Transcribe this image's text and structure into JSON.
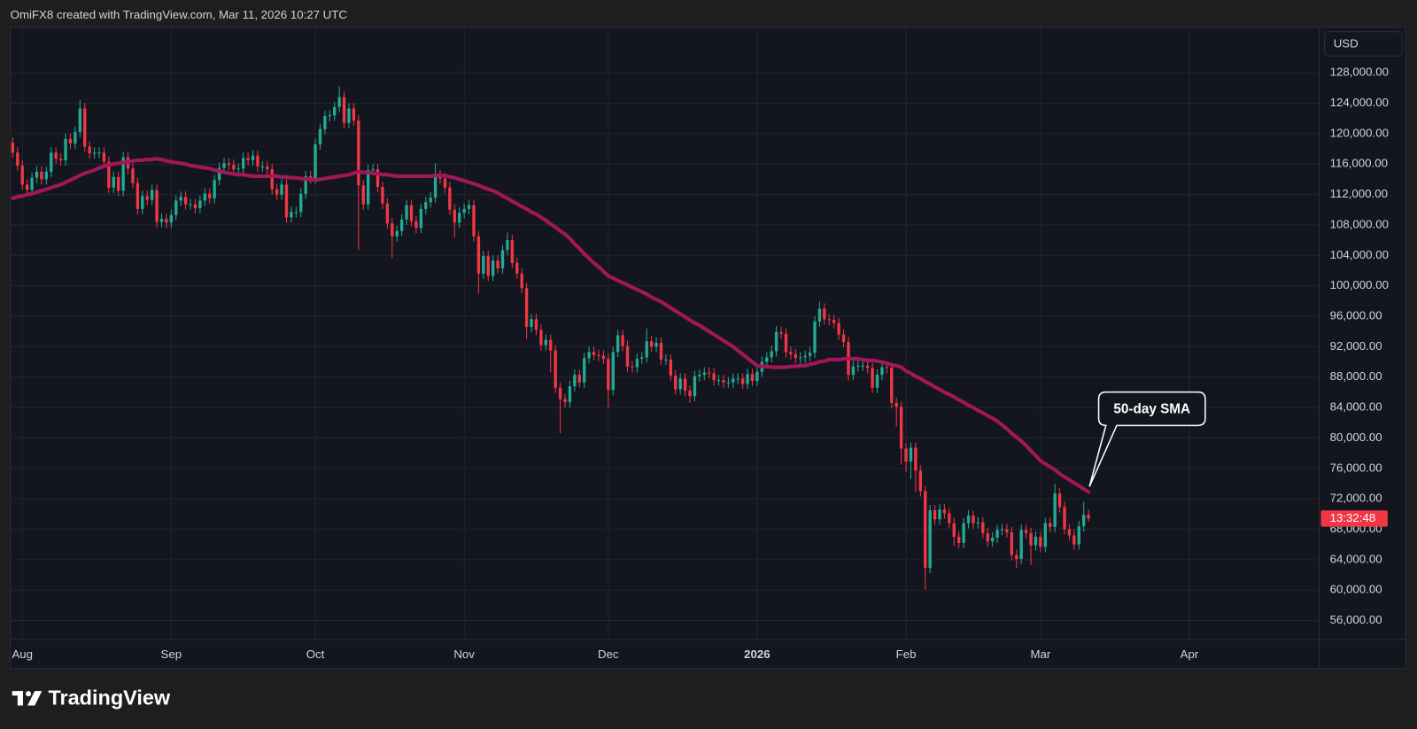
{
  "header": {
    "attribution": "OmiFX8 created with TradingView.com, Mar 11, 2026 10:27 UTC"
  },
  "logo": {
    "text": "TradingView"
  },
  "chart_data": {
    "type": "candlestick",
    "currency": "USD",
    "countdown": "13:32:48",
    "up_color": "#22ab94",
    "down_color": "#f23645",
    "grid": true,
    "open": [
      118800,
      117500,
      115800,
      113300,
      112600,
      114200,
      115000,
      114000,
      115000,
      117500,
      116700,
      116500,
      119300,
      118700,
      120200,
      123300,
      118300,
      117400,
      117500,
      117500,
      116300,
      112900,
      114300,
      112500,
      116900,
      115400,
      113500,
      110100,
      111800,
      111300,
      112600,
      108400,
      108800,
      108300,
      109300,
      111200,
      111700,
      110700,
      110700,
      110200,
      111200,
      112100,
      111500,
      113900,
      115500,
      116100,
      115900,
      115300,
      115400,
      116800,
      116500,
      117100,
      115700,
      115700,
      115300,
      112700,
      112000,
      113300,
      109000,
      109700,
      109700,
      112100,
      114400,
      114100,
      118600,
      120600,
      122300,
      122400,
      123500,
      124800,
      121400,
      123300,
      121700,
      113200,
      110700,
      115200,
      115300,
      113000,
      110800,
      108200,
      106500,
      107200,
      108700,
      110600,
      108500,
      107600,
      110100,
      111000,
      111600,
      114500,
      114100,
      112900,
      110000,
      108300,
      109600,
      110100,
      110600,
      106500,
      101600,
      103900,
      101300,
      103300,
      102300,
      104700,
      106000,
      103000,
      101600,
      99700,
      94600,
      95600,
      94200,
      92200,
      92900,
      91500,
      86600,
      85100,
      84700,
      86800,
      88300,
      87300,
      90500,
      91300,
      90900,
      90800,
      90400,
      86300,
      91300,
      93500,
      92100,
      89400,
      89300,
      90400,
      90600,
      92700,
      92000,
      92500,
      90300,
      90300,
      88200,
      86400,
      87800,
      86200,
      85500,
      88100,
      88300,
      88600,
      88500,
      87600,
      87600,
      87300,
      87300,
      87800,
      87800,
      87100,
      88400,
      87500,
      88700,
      90000,
      90600,
      91400,
      93900,
      93700,
      91300,
      91000,
      90500,
      90600,
      90800,
      91200,
      95300,
      97000,
      95600,
      95500,
      95100,
      93600,
      92600,
      88300,
      89400,
      89500,
      89500,
      89200,
      86600,
      88300,
      89300,
      89200,
      84600,
      84100,
      78600,
      76900,
      78700,
      75700,
      73000,
      62900,
      70500,
      69300,
      70600,
      70100,
      68800,
      67000,
      66200,
      68800,
      69800,
      68800,
      68900,
      67500,
      66400,
      66900,
      67900,
      68000,
      67600,
      64600,
      64100,
      67900,
      67500,
      65900,
      67000,
      65700,
      68800,
      68300,
      72700,
      70900,
      68000,
      67200,
      66000,
      68400,
      69900
    ],
    "high": [
      119500,
      118200,
      116500,
      114000,
      114900,
      115700,
      115700,
      115700,
      118200,
      118200,
      117400,
      120000,
      120000,
      120900,
      124400,
      124000,
      119000,
      118200,
      118200,
      118200,
      117000,
      115000,
      115000,
      117600,
      117600,
      116100,
      114200,
      112500,
      112500,
      113300,
      113300,
      109500,
      109500,
      110000,
      111900,
      112400,
      112400,
      111400,
      111400,
      111900,
      112800,
      112800,
      114600,
      116200,
      116800,
      116800,
      116600,
      116100,
      117500,
      117500,
      117800,
      117800,
      116400,
      116400,
      116000,
      113400,
      114000,
      114000,
      110400,
      110400,
      112800,
      115100,
      115100,
      119300,
      121300,
      123000,
      123100,
      124200,
      126200,
      125500,
      124000,
      124000,
      122400,
      113900,
      115900,
      116000,
      116000,
      113700,
      111500,
      108900,
      107900,
      109400,
      111300,
      111300,
      109200,
      110800,
      111700,
      112300,
      116100,
      115200,
      114800,
      113600,
      110700,
      110300,
      110800,
      111300,
      111300,
      107200,
      104600,
      104600,
      104000,
      104000,
      105400,
      107000,
      106700,
      103700,
      102300,
      100400,
      96300,
      96300,
      94900,
      93600,
      93600,
      92200,
      87300,
      85800,
      87500,
      89000,
      89000,
      91200,
      92000,
      92000,
      91600,
      91500,
      91100,
      92000,
      94200,
      94200,
      92800,
      90100,
      91100,
      91300,
      94400,
      93400,
      93200,
      93200,
      91000,
      91000,
      88900,
      88500,
      88500,
      86900,
      88800,
      89000,
      89300,
      89300,
      89200,
      88300,
      88300,
      88000,
      88500,
      88500,
      88500,
      89100,
      89100,
      89400,
      90700,
      91300,
      92100,
      94700,
      94600,
      94400,
      92000,
      91700,
      91300,
      91500,
      92000,
      96000,
      97900,
      97700,
      96300,
      96200,
      95800,
      94300,
      93300,
      90100,
      90200,
      90200,
      90200,
      89900,
      89000,
      90000,
      90000,
      89900,
      85300,
      84800,
      79300,
      79400,
      79400,
      76400,
      73700,
      71200,
      71200,
      71300,
      71300,
      70800,
      69500,
      67700,
      69500,
      70500,
      70500,
      69600,
      69600,
      68200,
      67600,
      68600,
      68700,
      68700,
      68300,
      65300,
      68600,
      68600,
      68200,
      67700,
      67700,
      69500,
      69500,
      74000,
      73400,
      71600,
      68700,
      67900,
      69100,
      71600,
      70600
    ],
    "low": [
      116800,
      115100,
      112600,
      111900,
      111900,
      113500,
      113300,
      113300,
      114300,
      116000,
      115800,
      115800,
      118000,
      118000,
      119500,
      117600,
      116700,
      116700,
      116800,
      115600,
      112200,
      112200,
      111800,
      111800,
      114700,
      112800,
      109400,
      109400,
      110600,
      110600,
      107700,
      107700,
      107600,
      107600,
      108600,
      110500,
      110000,
      110000,
      109500,
      109500,
      110500,
      110800,
      110800,
      113200,
      114800,
      115200,
      114600,
      114600,
      114700,
      115800,
      115800,
      115000,
      115000,
      114600,
      112000,
      111300,
      111300,
      108300,
      108300,
      109000,
      109000,
      111400,
      113400,
      113400,
      117900,
      119900,
      121600,
      121700,
      122800,
      120700,
      120700,
      121000,
      104700,
      110000,
      110000,
      114500,
      112300,
      110100,
      107500,
      103600,
      105800,
      106500,
      108000,
      107800,
      106900,
      106900,
      109400,
      110300,
      110900,
      113400,
      112200,
      109300,
      106300,
      107600,
      108900,
      109400,
      105800,
      99000,
      100900,
      100600,
      100600,
      101600,
      101600,
      104000,
      102300,
      100900,
      99000,
      93000,
      93900,
      93500,
      91500,
      91500,
      88600,
      85900,
      80600,
      84000,
      84000,
      86100,
      86600,
      86600,
      89800,
      90200,
      90100,
      89700,
      84000,
      85600,
      90600,
      91400,
      88700,
      88600,
      88600,
      89700,
      89900,
      91300,
      91300,
      89600,
      89600,
      87500,
      85700,
      85700,
      85500,
      84600,
      84800,
      87400,
      87600,
      87800,
      86900,
      86900,
      86600,
      86600,
      86600,
      87100,
      86400,
      86400,
      86800,
      86800,
      88000,
      89300,
      89900,
      90700,
      93000,
      90600,
      90300,
      89800,
      89800,
      89900,
      90100,
      90500,
      94600,
      94900,
      94800,
      94400,
      92900,
      91900,
      87500,
      87600,
      88700,
      88800,
      88500,
      85900,
      85900,
      87600,
      88500,
      83900,
      81500,
      76500,
      75500,
      74600,
      72900,
      72300,
      60100,
      62200,
      68600,
      68600,
      69400,
      68100,
      65800,
      65500,
      65500,
      68100,
      68100,
      68100,
      66800,
      65700,
      65700,
      66200,
      67200,
      66900,
      63900,
      62900,
      63400,
      66800,
      63300,
      65200,
      65000,
      65000,
      67600,
      67600,
      70200,
      67300,
      66500,
      65300,
      65300,
      67700,
      69000
    ],
    "close": [
      117500,
      115800,
      113300,
      112600,
      114200,
      115000,
      114000,
      115000,
      117500,
      116700,
      116500,
      119300,
      118700,
      120200,
      123300,
      118300,
      117400,
      117500,
      117500,
      116300,
      112900,
      114300,
      112500,
      116900,
      115400,
      113500,
      110100,
      111800,
      111300,
      112600,
      108400,
      108800,
      108300,
      109300,
      111200,
      111700,
      110700,
      110700,
      110200,
      111200,
      112100,
      111500,
      113900,
      115500,
      116100,
      115900,
      115300,
      115400,
      116800,
      116500,
      117100,
      115700,
      115700,
      115300,
      112700,
      112000,
      113300,
      109000,
      109700,
      109700,
      112100,
      114400,
      114100,
      118600,
      120600,
      122300,
      122400,
      123500,
      124800,
      121400,
      123300,
      121700,
      113200,
      110700,
      115200,
      115300,
      113000,
      110800,
      108200,
      106500,
      107200,
      108700,
      110600,
      108500,
      107600,
      110100,
      111000,
      111600,
      114500,
      114100,
      112900,
      110000,
      108300,
      109600,
      110100,
      110600,
      106500,
      101600,
      103900,
      101300,
      103300,
      102300,
      104700,
      106000,
      103000,
      101600,
      99700,
      94600,
      95600,
      94200,
      92200,
      92900,
      91500,
      86600,
      85100,
      84700,
      86800,
      88300,
      87300,
      90500,
      91300,
      90900,
      90800,
      90400,
      86300,
      91300,
      93500,
      92100,
      89400,
      89300,
      90400,
      90600,
      92700,
      92000,
      92500,
      90300,
      90300,
      88200,
      86400,
      87800,
      86200,
      85500,
      88100,
      88300,
      88600,
      88500,
      87600,
      87600,
      87300,
      87300,
      87800,
      87800,
      87100,
      88400,
      87500,
      88700,
      90000,
      90600,
      91400,
      93900,
      93700,
      91300,
      91000,
      90500,
      90600,
      90800,
      91200,
      95300,
      97000,
      95600,
      95500,
      95100,
      93600,
      92600,
      88300,
      89400,
      89500,
      89500,
      89200,
      86600,
      88300,
      89300,
      89200,
      84600,
      84100,
      78600,
      76900,
      78700,
      75700,
      73000,
      62900,
      70500,
      69300,
      70600,
      70100,
      68800,
      67000,
      66200,
      68800,
      69800,
      68800,
      68900,
      67500,
      66400,
      66900,
      67900,
      68000,
      67600,
      64600,
      64100,
      67900,
      67500,
      65900,
      67000,
      65700,
      68800,
      68300,
      72700,
      70900,
      68000,
      67200,
      66000,
      68400,
      69900,
      69400
    ],
    "series": [
      {
        "name": "50-day SMA",
        "color": "#a3175a",
        "values": [
          111500,
          111700,
          111800,
          112000,
          112100,
          112300,
          112500,
          112700,
          112900,
          113100,
          113300,
          113600,
          113900,
          114200,
          114500,
          114800,
          115000,
          115200,
          115500,
          115700,
          115900,
          116000,
          116100,
          116200,
          116300,
          116400,
          116500,
          116500,
          116600,
          116600,
          116700,
          116600,
          116400,
          116300,
          116200,
          116100,
          116000,
          115800,
          115700,
          115600,
          115500,
          115400,
          115200,
          115100,
          114900,
          114800,
          114700,
          114600,
          114600,
          114500,
          114400,
          114400,
          114400,
          114400,
          114400,
          114400,
          114300,
          114300,
          114200,
          114200,
          114100,
          114000,
          114000,
          113900,
          114000,
          114100,
          114200,
          114300,
          114400,
          114500,
          114600,
          114800,
          115000,
          114900,
          114900,
          114800,
          114700,
          114600,
          114600,
          114500,
          114400,
          114400,
          114400,
          114400,
          114400,
          114400,
          114400,
          114400,
          114500,
          114500,
          114500,
          114300,
          114200,
          114000,
          113800,
          113600,
          113400,
          113200,
          112900,
          112700,
          112500,
          112200,
          111800,
          111500,
          111100,
          110800,
          110400,
          110100,
          109700,
          109400,
          109000,
          108600,
          108100,
          107700,
          107200,
          106800,
          106200,
          105500,
          104900,
          104200,
          103600,
          103000,
          102500,
          101900,
          101300,
          101000,
          100700,
          100400,
          100100,
          99800,
          99500,
          99200,
          98900,
          98500,
          98200,
          97900,
          97500,
          97100,
          96700,
          96300,
          95900,
          95500,
          95100,
          94800,
          94400,
          94000,
          93600,
          93200,
          92800,
          92400,
          92000,
          91500,
          91000,
          90500,
          90000,
          89500,
          89400,
          89400,
          89300,
          89300,
          89300,
          89300,
          89400,
          89400,
          89500,
          89500,
          89700,
          89800,
          90000,
          90100,
          90300,
          90300,
          90300,
          90400,
          90400,
          90400,
          90400,
          90300,
          90200,
          90200,
          90100,
          90000,
          89800,
          89600,
          89500,
          89300,
          88800,
          88500,
          88100,
          87800,
          87400,
          87100,
          86700,
          86400,
          86000,
          85700,
          85400,
          85000,
          84700,
          84300,
          84000,
          83600,
          83300,
          82900,
          82600,
          82200,
          81700,
          81200,
          80600,
          80100,
          79600,
          79000,
          78300,
          77700,
          77000,
          76600,
          76200,
          75800,
          75300,
          74900,
          74500,
          74100,
          73700,
          73300,
          72900
        ]
      }
    ],
    "xlim": [
      -0.5,
      272
    ],
    "xticks": [
      {
        "value": 2,
        "label": "Aug"
      },
      {
        "value": 33,
        "label": "Sep"
      },
      {
        "value": 63,
        "label": "Oct"
      },
      {
        "value": 94,
        "label": "Nov"
      },
      {
        "value": 124,
        "label": "Dec"
      },
      {
        "value": 155,
        "label": "2026"
      },
      {
        "value": 186,
        "label": "Feb"
      },
      {
        "value": 214,
        "label": "Mar"
      },
      {
        "value": 245,
        "label": "Apr"
      }
    ],
    "ylim": [
      53500,
      134000
    ],
    "yticks": [
      {
        "value": 56000,
        "label": "56,000.00"
      },
      {
        "value": 60000,
        "label": "60,000.00"
      },
      {
        "value": 64000,
        "label": "64,000.00"
      },
      {
        "value": 68000,
        "label": "68,000.00"
      },
      {
        "value": 72000,
        "label": "72,000.00"
      },
      {
        "value": 76000,
        "label": "76,000.00"
      },
      {
        "value": 80000,
        "label": "80,000.00"
      },
      {
        "value": 84000,
        "label": "84,000.00"
      },
      {
        "value": 88000,
        "label": "88,000.00"
      },
      {
        "value": 92000,
        "label": "92,000.00"
      },
      {
        "value": 96000,
        "label": "96,000.00"
      },
      {
        "value": 100000,
        "label": "100,000.00"
      },
      {
        "value": 104000,
        "label": "104,000.00"
      },
      {
        "value": 108000,
        "label": "108,000.00"
      },
      {
        "value": 112000,
        "label": "112,000.00"
      },
      {
        "value": 116000,
        "label": "116,000.00"
      },
      {
        "value": 120000,
        "label": "120,000.00"
      },
      {
        "value": 124000,
        "label": "124,000.00"
      },
      {
        "value": 128000,
        "label": "128,000.00"
      }
    ]
  }
}
